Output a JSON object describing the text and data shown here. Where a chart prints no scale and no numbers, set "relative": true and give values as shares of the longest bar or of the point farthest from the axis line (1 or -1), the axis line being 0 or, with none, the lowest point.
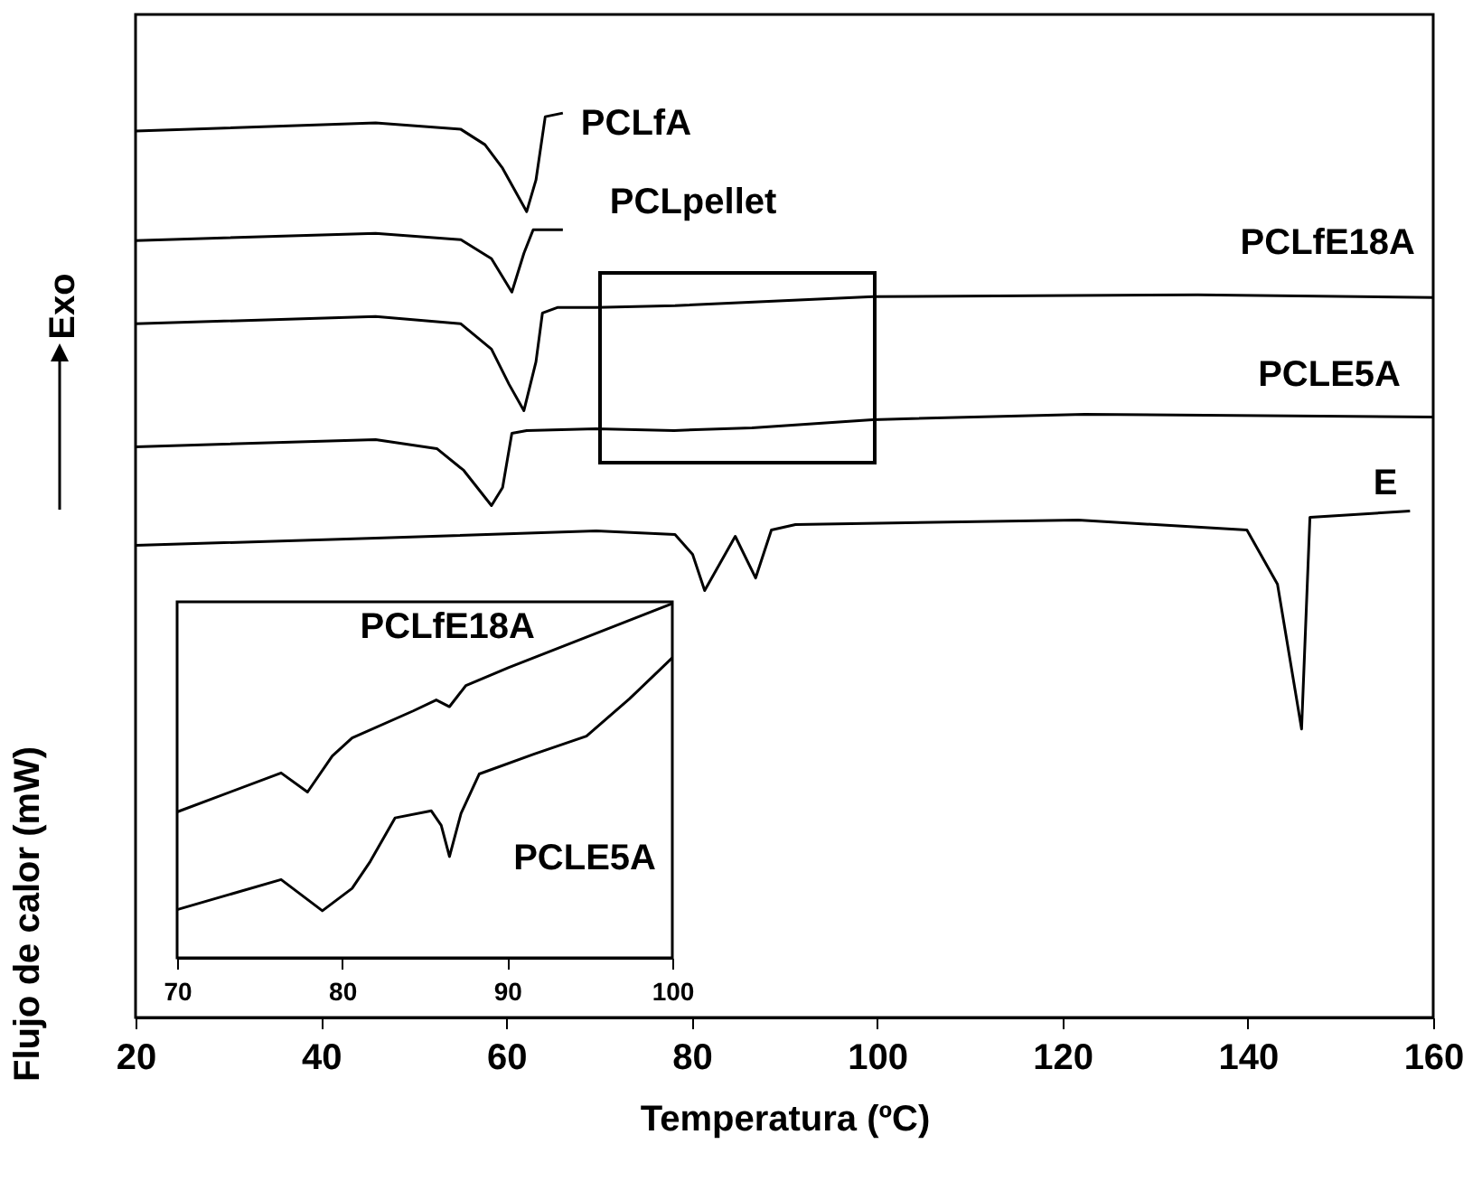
{
  "chart_data": [
    {
      "type": "line",
      "xlabel": "Temperatura (ºC)",
      "ylabel": "Flujo de calor (mW)",
      "annotations": [
        "Exo"
      ],
      "relative": true,
      "xlim": [
        20,
        160
      ],
      "xticks": [
        20,
        40,
        60,
        80,
        100,
        120,
        140,
        160
      ],
      "series": [
        {
          "name": "PCLfA",
          "color": "#000000",
          "x": [
            20,
            45.9,
            55.1,
            57.7,
            59.6,
            62.2,
            63.2,
            64.2,
            66.1
          ],
          "values": [
            0.98,
            0.989,
            0.982,
            0.965,
            0.939,
            0.891,
            0.926,
            0.996,
            1.0
          ]
        },
        {
          "name": "PCLpellet",
          "color": "#000000",
          "x": [
            20,
            45.9,
            55.1,
            58.4,
            60.6,
            61.9,
            62.9,
            66.1
          ],
          "values": [
            0.859,
            0.867,
            0.86,
            0.839,
            0.802,
            0.845,
            0.871,
            0.871
          ]
        },
        {
          "name": "PCLfE18A",
          "color": "#000000",
          "x": [
            20,
            45.9,
            55.1,
            58.4,
            60.3,
            61.9,
            63.2,
            63.9,
            65.5,
            69.7,
            78.2,
            99.6,
            134.6,
            160
          ],
          "values": [
            0.767,
            0.775,
            0.767,
            0.739,
            0.7,
            0.671,
            0.725,
            0.779,
            0.785,
            0.785,
            0.787,
            0.797,
            0.799,
            0.796
          ]
        },
        {
          "name": "PCLE5A",
          "color": "#000000",
          "x": [
            20,
            45.9,
            52.5,
            55.4,
            58.4,
            59.6,
            60.6,
            62.2,
            69.7,
            78.1,
            86.5,
            99.5,
            122.4,
            160
          ],
          "values": [
            0.631,
            0.639,
            0.629,
            0.605,
            0.566,
            0.586,
            0.646,
            0.649,
            0.651,
            0.649,
            0.652,
            0.661,
            0.667,
            0.664
          ]
        },
        {
          "name": "E",
          "color": "#000000",
          "x": [
            20,
            45.9,
            69.7,
            78.2,
            80.1,
            81.4,
            84.7,
            86.9,
            88.6,
            91.2,
            121.7,
            139.9,
            143.2,
            145.8,
            146.7,
            157.5
          ],
          "values": [
            0.522,
            0.53,
            0.538,
            0.534,
            0.512,
            0.472,
            0.532,
            0.486,
            0.539,
            0.545,
            0.55,
            0.539,
            0.479,
            0.319,
            0.553,
            0.56
          ]
        }
      ]
    },
    {
      "type": "line",
      "relative": true,
      "xlim": [
        70,
        100
      ],
      "xticks": [
        70,
        80,
        90,
        100
      ],
      "series": [
        {
          "name": "PCLfE18A",
          "color": "#000000",
          "x": [
            70,
            76.3,
            77.9,
            79.4,
            80.6,
            84.3,
            85.7,
            86.5,
            87.5,
            90.1,
            100
          ],
          "values": [
            0.412,
            0.522,
            0.468,
            0.57,
            0.621,
            0.697,
            0.728,
            0.709,
            0.769,
            0.82,
            1.0
          ]
        },
        {
          "name": "PCLE5A",
          "color": "#000000",
          "x": [
            70,
            76.3,
            78.8,
            80.6,
            81.7,
            83.2,
            85.4,
            86.0,
            86.5,
            87.2,
            88.3,
            91.6,
            94.8,
            97.4,
            100
          ],
          "values": [
            0.136,
            0.221,
            0.133,
            0.196,
            0.272,
            0.395,
            0.415,
            0.374,
            0.286,
            0.408,
            0.519,
            0.575,
            0.626,
            0.731,
            0.847
          ]
        }
      ]
    }
  ]
}
